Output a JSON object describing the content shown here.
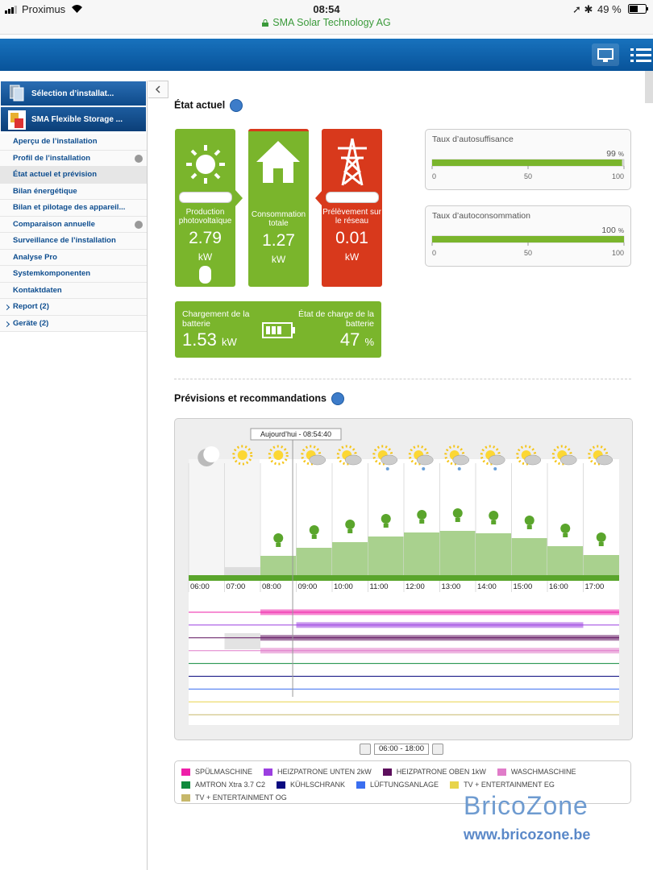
{
  "status_bar": {
    "carrier": "Proximus",
    "time": "08:54",
    "site": "SMA Solar Technology AG",
    "battery": "49 %"
  },
  "sidebar": {
    "plant_selector": "Sélection d’installat...",
    "plant": "SMA Flexible Storage ...",
    "items": [
      "Aperçu de l’installation",
      "Profil de l’installation",
      "État actuel et prévision",
      "Bilan énergétique",
      "Bilan et pilotage des appareil...",
      "Comparaison annuelle",
      "Surveillance de l’installation",
      "Analyse Pro",
      "Systemkomponenten",
      "Kontaktdaten",
      "Report (2)",
      "Geräte (2)"
    ]
  },
  "current": {
    "title": "État actuel",
    "tiles": [
      {
        "label": "Production photovoltaïque",
        "value": "2.79",
        "unit": "kW"
      },
      {
        "label": "Consommation totale",
        "value": "1.27",
        "unit": "kW"
      },
      {
        "label": "Prélèvement sur le réseau",
        "value": "0.01",
        "unit": "kW"
      }
    ],
    "battery": {
      "charge_label": "Chargement de la batterie",
      "charge_value": "1.53",
      "charge_unit": "kW",
      "soc_label": "État de charge de la batterie",
      "soc_value": "47",
      "soc_unit": "%"
    },
    "gauges": [
      {
        "label": "Taux d’autosuffisance",
        "value": 99,
        "unit": "%",
        "xlim": [
          0,
          100
        ],
        "xticks": [
          0,
          50,
          100
        ],
        "color": "#7ab52c"
      },
      {
        "label": "Taux d’autoconsommation",
        "value": 100,
        "unit": "%",
        "xlim": [
          0,
          100
        ],
        "xticks": [
          0,
          50,
          100
        ],
        "color": "#7ab52c"
      }
    ]
  },
  "forecast": {
    "title": "Prévisions et recommandations",
    "now_label": "Aujourd’hui - 08:54:40",
    "categories": [
      "06:00",
      "07:00",
      "08:00",
      "09:00",
      "10:00",
      "11:00",
      "12:00",
      "13:00",
      "14:00",
      "15:00",
      "16:00",
      "17:00"
    ],
    "values": [
      0,
      10,
      24,
      34,
      41,
      48,
      53,
      55,
      52,
      46,
      36,
      25
    ],
    "colors": [
      "#dddddd",
      "#dddddd",
      "#a9d18e",
      "#a9d18e",
      "#a9d18e",
      "#a9d18e",
      "#a9d18e",
      "#a9d18e",
      "#a9d18e",
      "#a9d18e",
      "#a9d18e",
      "#a9d18e"
    ],
    "ylim": [
      0,
      70
    ],
    "range": "06:00 - 18:00",
    "legend": [
      {
        "name": "SPÜLMASCHINE",
        "color": "#ee1fa9"
      },
      {
        "name": "HEIZPATRONE UNTEN 2kW",
        "color": "#9b3fe0"
      },
      {
        "name": "HEIZPATRONE OBEN 1kW",
        "color": "#5c0f5c"
      },
      {
        "name": "WASCHMASCHINE",
        "color": "#e07cc9"
      },
      {
        "name": "AMTRON Xtra 3.7 C2",
        "color": "#0f8a3c"
      },
      {
        "name": "KÜHLSCHRANK",
        "color": "#0a0a80"
      },
      {
        "name": "LÜFTUNGSANLAGE",
        "color": "#3a6ef0"
      },
      {
        "name": "TV + ENTERTAINMENT EG",
        "color": "#e8d44a"
      },
      {
        "name": "TV + ENTERTAINMENT OG",
        "color": "#c7b86a"
      }
    ]
  },
  "watermark": {
    "brand": "BricoZone",
    "url": "www.bricozone.be"
  }
}
